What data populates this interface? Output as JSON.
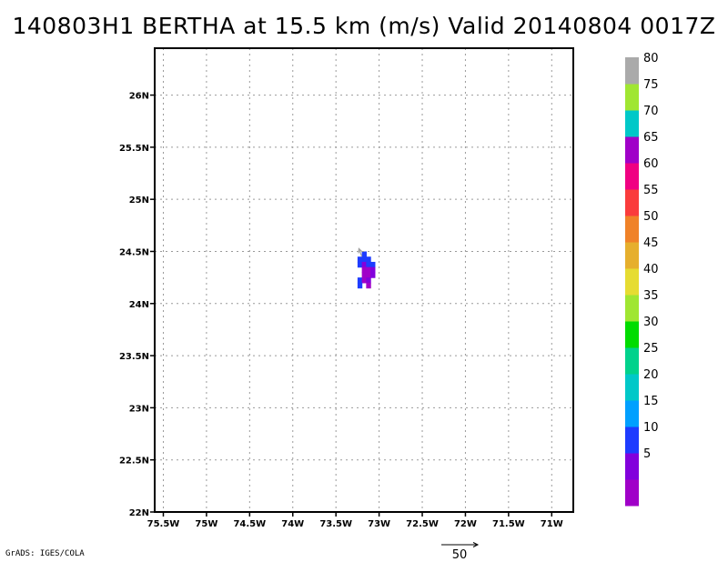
{
  "title": "140803H1 BERTHA at 15.5 km (m/s) Valid 20140804 0017Z",
  "credit": "GrADS: IGES/COLA",
  "chart_data": {
    "type": "heatmap",
    "title": "140803H1 BERTHA at 15.5 km (m/s) Valid 20140804 0017Z",
    "xlim": [
      -75.6,
      -70.75
    ],
    "ylim": [
      22,
      26.45
    ],
    "x_ticks": [
      {
        "value": -75.5,
        "label": "75.5W"
      },
      {
        "value": -75.0,
        "label": "75W"
      },
      {
        "value": -74.5,
        "label": "74.5W"
      },
      {
        "value": -74.0,
        "label": "74W"
      },
      {
        "value": -73.5,
        "label": "73.5W"
      },
      {
        "value": -73.0,
        "label": "73W"
      },
      {
        "value": -72.5,
        "label": "72.5W"
      },
      {
        "value": -72.0,
        "label": "72W"
      },
      {
        "value": -71.5,
        "label": "71.5W"
      },
      {
        "value": -71.0,
        "label": "71W"
      }
    ],
    "y_ticks": [
      {
        "value": 22.0,
        "label": "22N"
      },
      {
        "value": 22.5,
        "label": "22.5N"
      },
      {
        "value": 23.0,
        "label": "23N"
      },
      {
        "value": 23.5,
        "label": "23.5N"
      },
      {
        "value": 24.0,
        "label": "24N"
      },
      {
        "value": 24.5,
        "label": "24.5N"
      },
      {
        "value": 25.0,
        "label": "25N"
      },
      {
        "value": 25.5,
        "label": "25.5N"
      },
      {
        "value": 26.0,
        "label": "26N"
      }
    ],
    "grid": true,
    "colorbar": {
      "placement": "right",
      "bins": [
        {
          "label": "",
          "color": "#a000c8"
        },
        {
          "label": "5",
          "color": "#8200dc"
        },
        {
          "label": "10",
          "color": "#1e3cff"
        },
        {
          "label": "15",
          "color": "#00a0ff"
        },
        {
          "label": "20",
          "color": "#00c8c8"
        },
        {
          "label": "25",
          "color": "#00d28c"
        },
        {
          "label": "30",
          "color": "#00dc00"
        },
        {
          "label": "35",
          "color": "#a0e632"
        },
        {
          "label": "40",
          "color": "#e6dc32"
        },
        {
          "label": "45",
          "color": "#e6af2d"
        },
        {
          "label": "50",
          "color": "#f08228"
        },
        {
          "label": "55",
          "color": "#fa3c3c"
        },
        {
          "label": "60",
          "color": "#f00082"
        },
        {
          "label": "65",
          "color": "#a000c8"
        },
        {
          "label": "70",
          "color": "#00c8c8"
        },
        {
          "label": "75",
          "color": "#a0e632"
        },
        {
          "label": "80",
          "color": "#aaaaaa"
        }
      ]
    },
    "cells": [
      {
        "lon": -73.175,
        "lat": 24.475,
        "w": 0.05,
        "h": 0.05,
        "speed": 12
      },
      {
        "lon": -73.225,
        "lat": 24.425,
        "w": 0.05,
        "h": 0.05,
        "speed": 12
      },
      {
        "lon": -73.175,
        "lat": 24.425,
        "w": 0.05,
        "h": 0.05,
        "speed": 12
      },
      {
        "lon": -73.125,
        "lat": 24.425,
        "w": 0.05,
        "h": 0.05,
        "speed": 12
      },
      {
        "lon": -73.225,
        "lat": 24.375,
        "w": 0.05,
        "h": 0.05,
        "speed": 12
      },
      {
        "lon": -73.175,
        "lat": 24.375,
        "w": 0.05,
        "h": 0.05,
        "speed": 8
      },
      {
        "lon": -73.125,
        "lat": 24.375,
        "w": 0.05,
        "h": 0.05,
        "speed": 12
      },
      {
        "lon": -73.075,
        "lat": 24.375,
        "w": 0.05,
        "h": 0.05,
        "speed": 12
      },
      {
        "lon": -73.175,
        "lat": 24.325,
        "w": 0.05,
        "h": 0.05,
        "speed": 3
      },
      {
        "lon": -73.125,
        "lat": 24.325,
        "w": 0.05,
        "h": 0.05,
        "speed": 3
      },
      {
        "lon": -73.075,
        "lat": 24.325,
        "w": 0.05,
        "h": 0.05,
        "speed": 8
      },
      {
        "lon": -73.175,
        "lat": 24.275,
        "w": 0.05,
        "h": 0.05,
        "speed": 3
      },
      {
        "lon": -73.125,
        "lat": 24.275,
        "w": 0.05,
        "h": 0.05,
        "speed": 3
      },
      {
        "lon": -73.075,
        "lat": 24.275,
        "w": 0.05,
        "h": 0.05,
        "speed": 8
      },
      {
        "lon": -73.225,
        "lat": 24.225,
        "w": 0.05,
        "h": 0.05,
        "speed": 12
      },
      {
        "lon": -73.175,
        "lat": 24.225,
        "w": 0.05,
        "h": 0.05,
        "speed": 3
      },
      {
        "lon": -73.125,
        "lat": 24.225,
        "w": 0.05,
        "h": 0.05,
        "speed": 8
      },
      {
        "lon": -73.225,
        "lat": 24.175,
        "w": 0.05,
        "h": 0.05,
        "speed": 12
      },
      {
        "lon": -73.125,
        "lat": 24.175,
        "w": 0.05,
        "h": 0.05,
        "speed": 3
      }
    ],
    "vectors": [
      {
        "lon": -73.2,
        "lat": 24.45,
        "u": -4,
        "v": 11
      }
    ],
    "reference_vector": {
      "speed": 50,
      "label": "50"
    }
  }
}
